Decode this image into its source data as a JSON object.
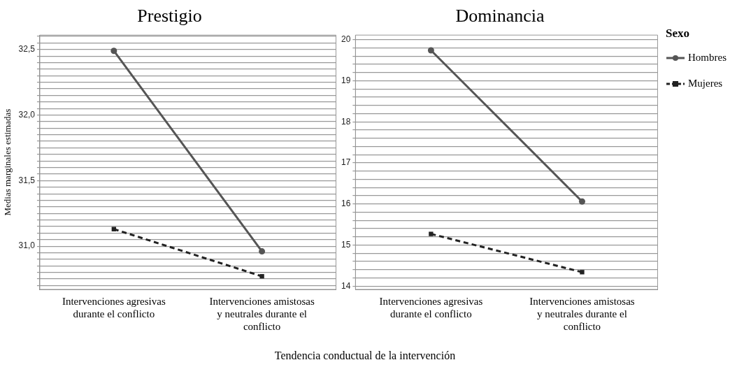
{
  "chart_data": [
    {
      "type": "line",
      "title": "Prestigio",
      "ylabel": "Medias marginales estimadas",
      "xlabel": "Tendencia conductual de la intervención",
      "categories": [
        "Intervenciones agresivas durante el conflicto",
        "Intervenciones amistosas y neutrales durante el conflicto"
      ],
      "series": [
        {
          "color": "#555555",
          "marker": "circle",
          "line_style": "solid",
          "values": [
            32.49,
            30.96
          ]
        },
        {
          "color": "#222222",
          "marker": "square",
          "line_style": "dashed",
          "values": [
            31.13,
            30.77
          ]
        }
      ],
      "ylim": [
        30.67,
        32.61
      ],
      "yticks": [
        {
          "value": 30.7,
          "label": null
        },
        {
          "value": 30.75,
          "label": null
        },
        {
          "value": 30.8,
          "label": null
        },
        {
          "value": 30.85,
          "label": null
        },
        {
          "value": 30.9,
          "label": null
        },
        {
          "value": 30.95,
          "label": null
        },
        {
          "value": 31.0,
          "label": "31,0"
        },
        {
          "value": 31.05,
          "label": null
        },
        {
          "value": 31.1,
          "label": null
        },
        {
          "value": 31.15,
          "label": null
        },
        {
          "value": 31.2,
          "label": null
        },
        {
          "value": 31.25,
          "label": null
        },
        {
          "value": 31.3,
          "label": null
        },
        {
          "value": 31.35,
          "label": null
        },
        {
          "value": 31.4,
          "label": null
        },
        {
          "value": 31.45,
          "label": null
        },
        {
          "value": 31.5,
          "label": "31,5"
        },
        {
          "value": 31.55,
          "label": null
        },
        {
          "value": 31.6,
          "label": null
        },
        {
          "value": 31.65,
          "label": null
        },
        {
          "value": 31.7,
          "label": null
        },
        {
          "value": 31.75,
          "label": null
        },
        {
          "value": 31.8,
          "label": null
        },
        {
          "value": 31.85,
          "label": null
        },
        {
          "value": 31.9,
          "label": null
        },
        {
          "value": 31.95,
          "label": null
        },
        {
          "value": 32.0,
          "label": "32,0"
        },
        {
          "value": 32.05,
          "label": null
        },
        {
          "value": 32.1,
          "label": null
        },
        {
          "value": 32.15,
          "label": null
        },
        {
          "value": 32.2,
          "label": null
        },
        {
          "value": 32.25,
          "label": null
        },
        {
          "value": 32.3,
          "label": null
        },
        {
          "value": 32.35,
          "label": null
        },
        {
          "value": 32.4,
          "label": null
        },
        {
          "value": 32.45,
          "label": null
        },
        {
          "value": 32.5,
          "label": "32,5"
        },
        {
          "value": 32.55,
          "label": null
        },
        {
          "value": 32.6,
          "label": null
        }
      ],
      "grid": "y",
      "legend": false
    },
    {
      "type": "line",
      "title": "Dominancia",
      "legend_title": "Sexo",
      "categories": [
        "Intervenciones agresivas durante el conflicto",
        "Intervenciones amistosas y neutrales durante el conflicto"
      ],
      "series": [
        {
          "name": "Hombres",
          "color": "#555555",
          "marker": "circle",
          "line_style": "solid",
          "values": [
            19.74,
            16.06
          ]
        },
        {
          "name": "Mujeres",
          "color": "#222222",
          "marker": "square",
          "line_style": "dashed",
          "values": [
            15.27,
            14.34
          ]
        }
      ],
      "ylim": [
        13.92,
        20.11
      ],
      "yticks": [
        14,
        {
          "value": 14.2,
          "label": null
        },
        {
          "value": 14.4,
          "label": null
        },
        {
          "value": 14.6,
          "label": null
        },
        {
          "value": 14.8,
          "label": null
        },
        15,
        {
          "value": 15.2,
          "label": null
        },
        {
          "value": 15.4,
          "label": null
        },
        {
          "value": 15.6,
          "label": null
        },
        {
          "value": 15.8,
          "label": null
        },
        16,
        {
          "value": 16.2,
          "label": null
        },
        {
          "value": 16.4,
          "label": null
        },
        {
          "value": 16.6,
          "label": null
        },
        {
          "value": 16.8,
          "label": null
        },
        17,
        {
          "value": 17.2,
          "label": null
        },
        {
          "value": 17.4,
          "label": null
        },
        {
          "value": 17.6,
          "label": null
        },
        {
          "value": 17.8,
          "label": null
        },
        18,
        {
          "value": 18.2,
          "label": null
        },
        {
          "value": 18.4,
          "label": null
        },
        {
          "value": 18.6,
          "label": null
        },
        {
          "value": 18.8,
          "label": null
        },
        19,
        {
          "value": 19.2,
          "label": null
        },
        {
          "value": 19.4,
          "label": null
        },
        {
          "value": 19.6,
          "label": null
        },
        {
          "value": 19.8,
          "label": null
        },
        20
      ],
      "grid": "y",
      "legend": "right"
    }
  ]
}
